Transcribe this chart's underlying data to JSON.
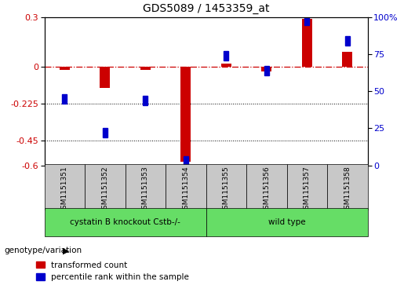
{
  "title": "GDS5089 / 1453359_at",
  "samples": [
    "GSM1151351",
    "GSM1151352",
    "GSM1151353",
    "GSM1151354",
    "GSM1151355",
    "GSM1151356",
    "GSM1151357",
    "GSM1151358"
  ],
  "red_values": [
    -0.02,
    -0.13,
    -0.02,
    -0.58,
    0.02,
    -0.03,
    0.29,
    0.09
  ],
  "blue_values": [
    43,
    20,
    42,
    1,
    72,
    62,
    96,
    82
  ],
  "ylim_left": [
    -0.6,
    0.3
  ],
  "ylim_right": [
    0,
    100
  ],
  "yticks_left": [
    -0.6,
    -0.45,
    -0.225,
    0,
    0.3
  ],
  "yticks_right": [
    0,
    25,
    50,
    75,
    100
  ],
  "dotted_lines": [
    -0.225,
    -0.45
  ],
  "group1_label": "cystatin B knockout Cstb-/-",
  "group1_indices": [
    0,
    1,
    2,
    3
  ],
  "group2_label": "wild type",
  "group2_indices": [
    4,
    5,
    6,
    7
  ],
  "genotype_label": "genotype/variation",
  "legend_red": "transformed count",
  "legend_blue": "percentile rank within the sample",
  "red_color": "#CC0000",
  "blue_color": "#0000CC",
  "green_color": "#66DD66",
  "gray_color": "#C8C8C8",
  "left_axis_color": "#CC0000",
  "right_axis_color": "#0000CC",
  "bar_width": 0.25
}
